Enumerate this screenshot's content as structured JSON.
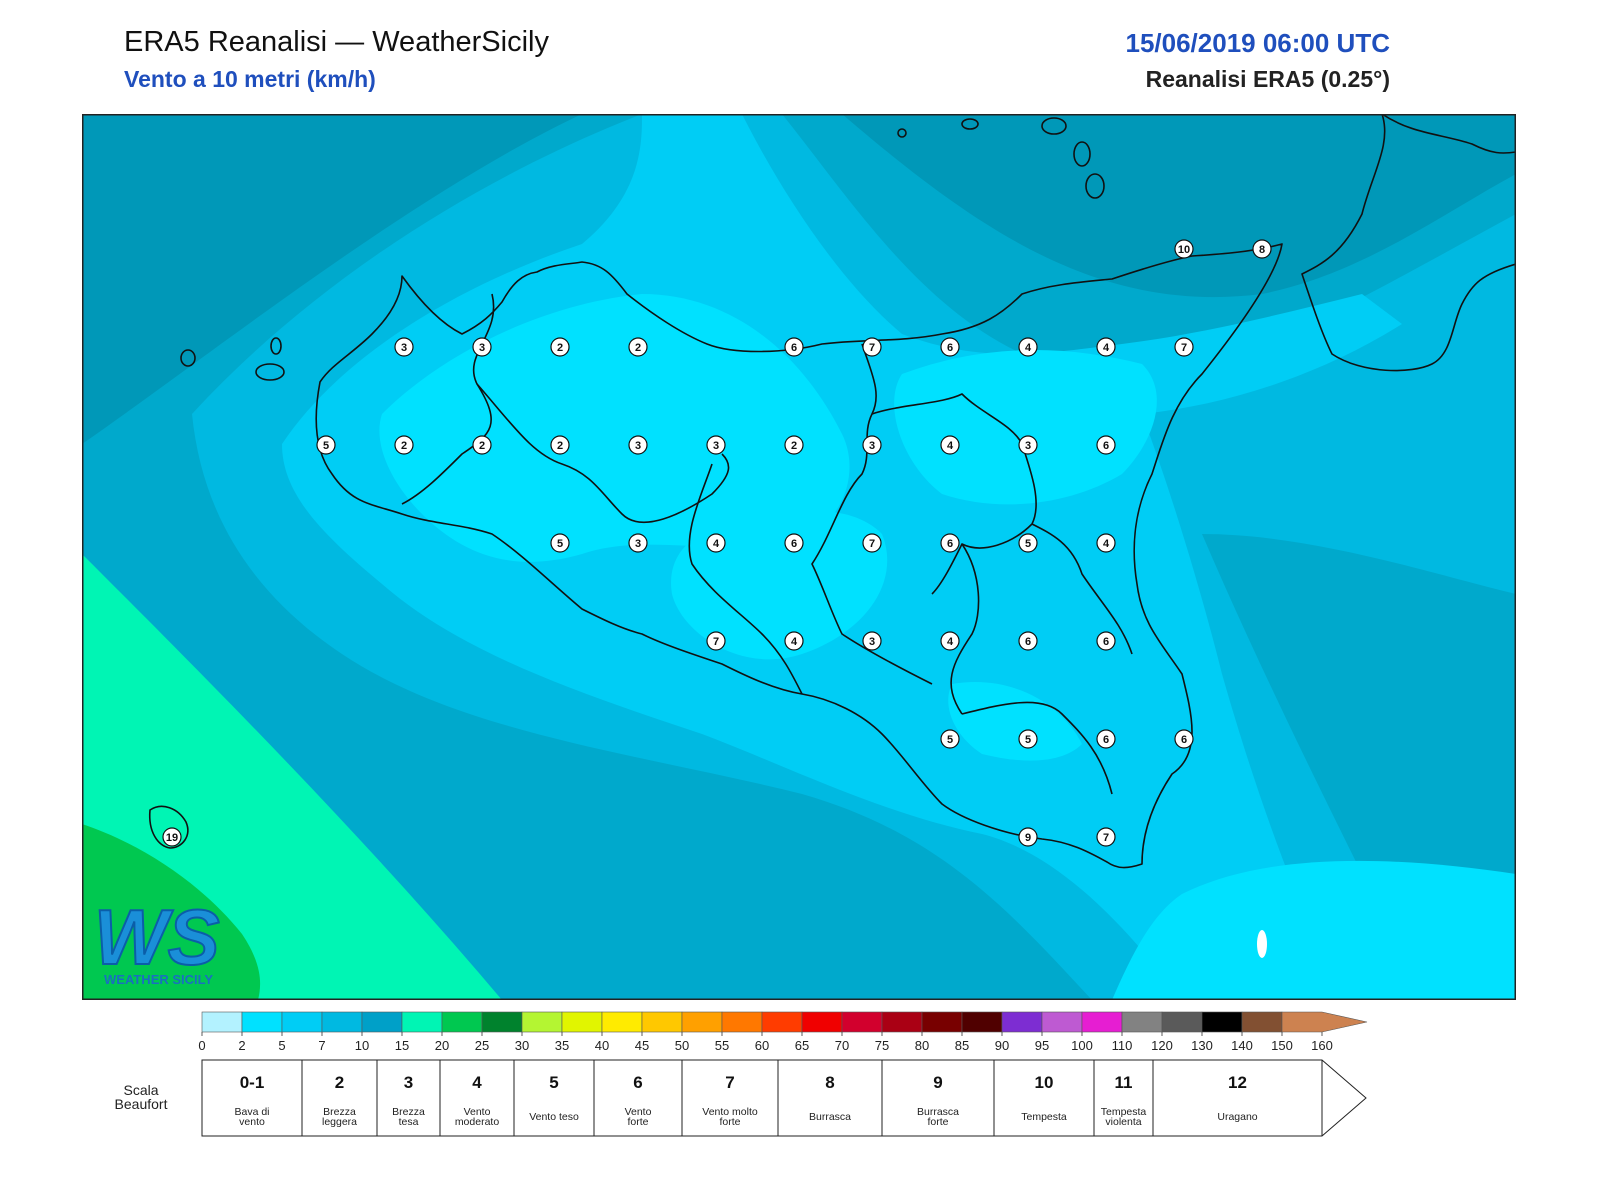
{
  "header": {
    "title": "ERA5 Reanalisi — WeatherSicily",
    "subtitle": "Vento a 10 metri (km/h)",
    "datetime": "15/06/2019 06:00 UTC",
    "source": "Reanalisi ERA5 (0.25°)"
  },
  "logo": {
    "letters": "WS",
    "name": "WEATHER SICILY"
  },
  "station_values": [
    "3",
    "3",
    "2",
    "2",
    "6",
    "7",
    "6",
    "4",
    "4",
    "7",
    "5",
    "2",
    "2",
    "2",
    "3",
    "3",
    "2",
    "3",
    "4",
    "3",
    "6",
    "5",
    "3",
    "4",
    "6",
    "7",
    "6",
    "5",
    "4",
    "7",
    "4",
    "3",
    "4",
    "6",
    "6",
    "5",
    "5",
    "6",
    "6",
    "9",
    "7",
    "10",
    "8",
    "19"
  ],
  "colorbar": {
    "ticks": [
      "0",
      "2",
      "5",
      "7",
      "10",
      "15",
      "20",
      "25",
      "30",
      "35",
      "40",
      "45",
      "50",
      "55",
      "60",
      "65",
      "70",
      "75",
      "80",
      "85",
      "90",
      "95",
      "100",
      "110",
      "120",
      "130",
      "140",
      "150",
      "160"
    ],
    "colors": [
      "#b3f2ff",
      "#00e1ff",
      "#00cdf5",
      "#00b9e1",
      "#00a0c8",
      "#00f5b4",
      "#00c850",
      "#00822d",
      "#b4f532",
      "#e1f500",
      "#ffeb00",
      "#ffc800",
      "#ffa000",
      "#ff7800",
      "#ff3c00",
      "#f00000",
      "#d2002d",
      "#aa0014",
      "#780000",
      "#500000",
      "#7d2dd2",
      "#be5ad2",
      "#e61ed2",
      "#828282",
      "#5a5a5a",
      "#000000",
      "#825032",
      "#cd8250"
    ]
  },
  "beaufort": {
    "title_line1": "Scala",
    "title_line2": "Beaufort",
    "cells": [
      {
        "force": "0-1",
        "l1": "Bava di",
        "l2": "vento"
      },
      {
        "force": "2",
        "l1": "Brezza",
        "l2": "leggera"
      },
      {
        "force": "3",
        "l1": "Brezza",
        "l2": "tesa"
      },
      {
        "force": "4",
        "l1": "Vento",
        "l2": "moderato"
      },
      {
        "force": "5",
        "l1": "Vento teso",
        "l2": ""
      },
      {
        "force": "6",
        "l1": "Vento",
        "l2": "forte"
      },
      {
        "force": "7",
        "l1": "Vento molto",
        "l2": "forte"
      },
      {
        "force": "8",
        "l1": "Burrasca",
        "l2": ""
      },
      {
        "force": "9",
        "l1": "Burrasca",
        "l2": "forte"
      },
      {
        "force": "10",
        "l1": "Tempesta",
        "l2": ""
      },
      {
        "force": "11",
        "l1": "Tempesta",
        "l2": "violenta"
      },
      {
        "force": "12",
        "l1": "Uragano",
        "l2": ""
      }
    ]
  }
}
